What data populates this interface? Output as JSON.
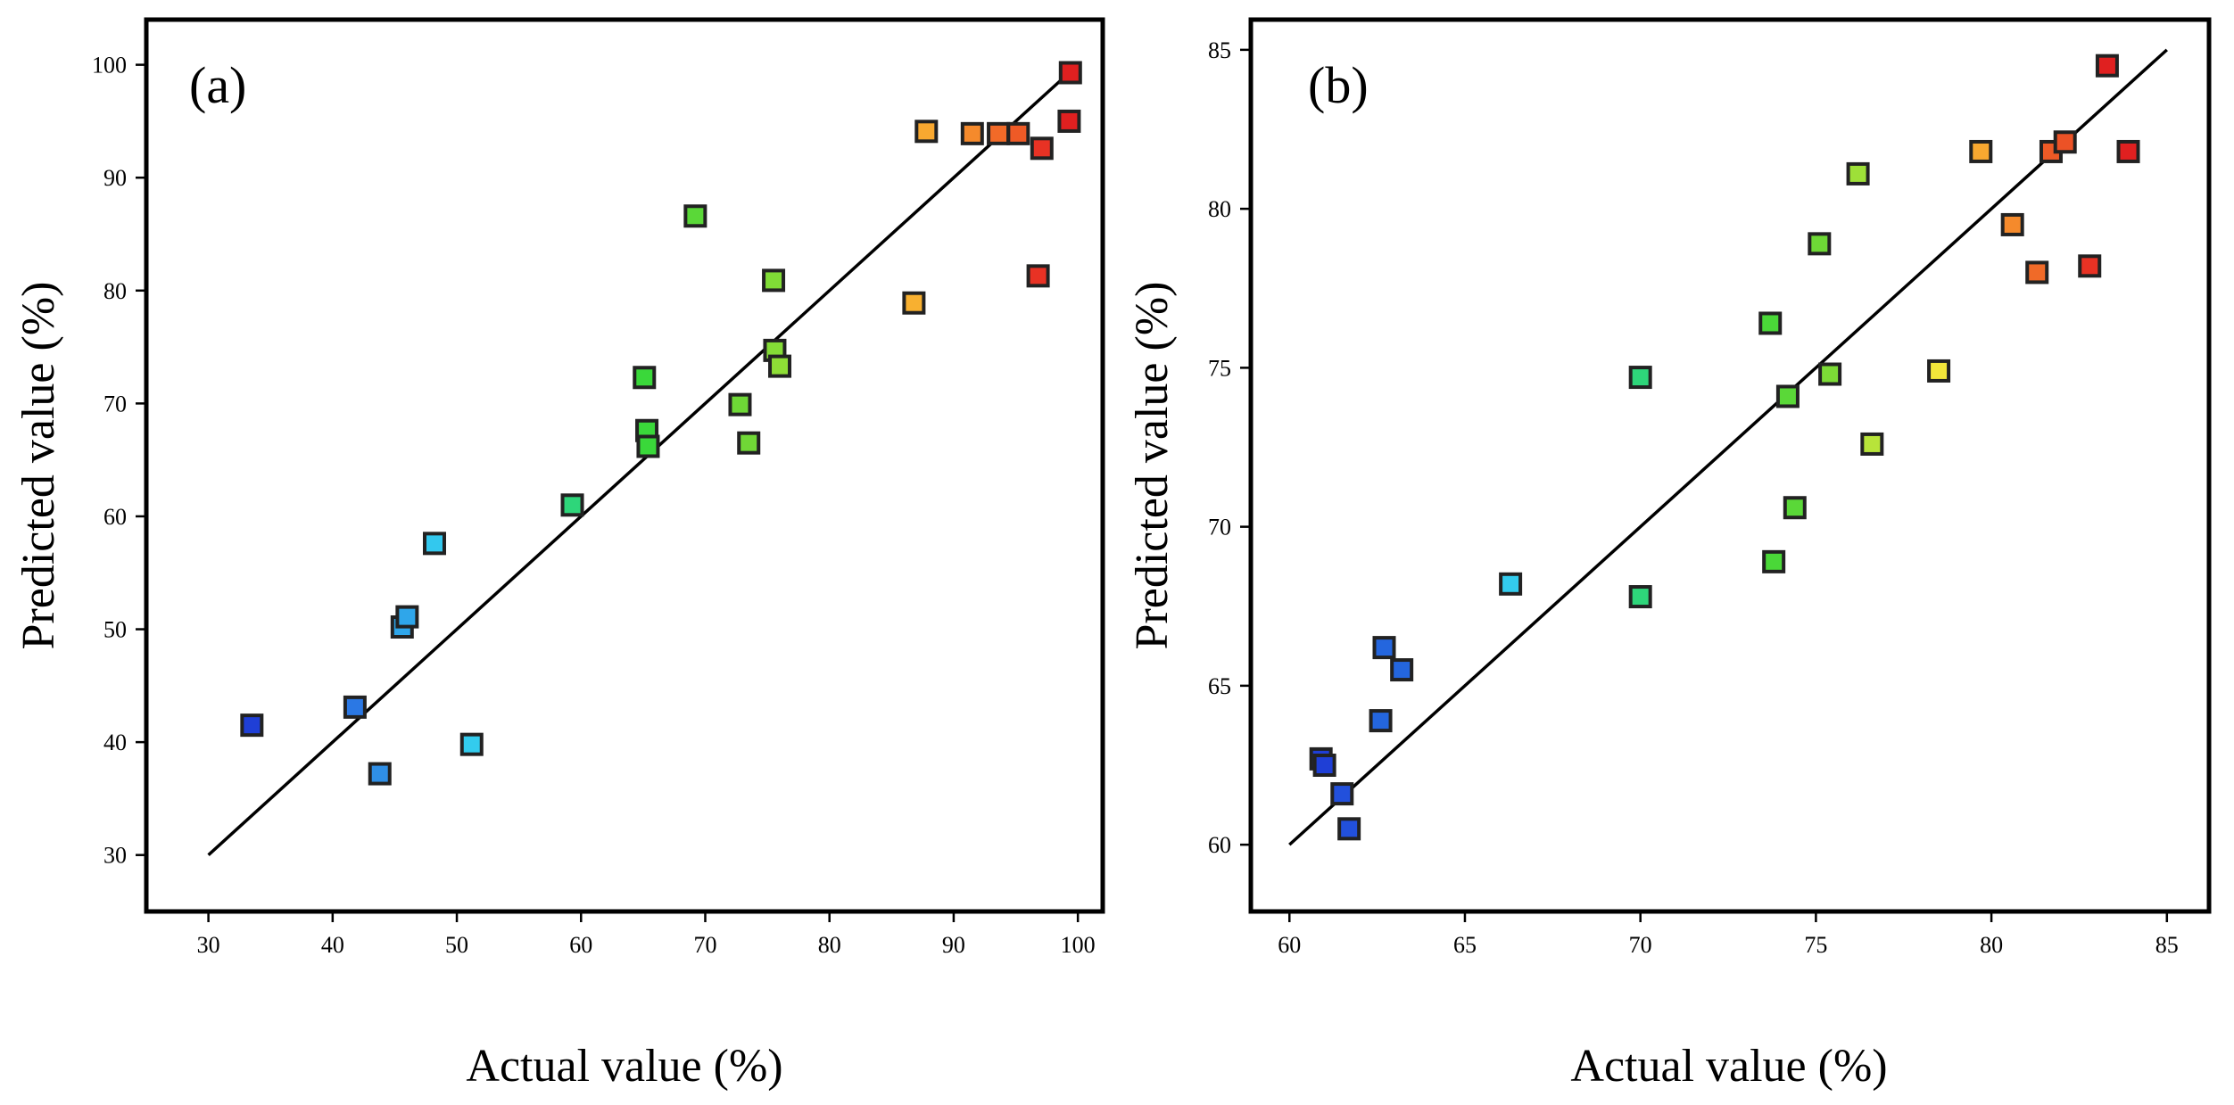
{
  "chart_data": [
    {
      "type": "scatter",
      "panel_label": "(a)",
      "xlabel": "Actual value (%)",
      "ylabel": "Predicted value (%)",
      "xlim": [
        25,
        102
      ],
      "ylim": [
        25,
        104
      ],
      "xticks": [
        30,
        40,
        50,
        60,
        70,
        80,
        90,
        100
      ],
      "yticks": [
        30,
        40,
        50,
        60,
        70,
        80,
        90,
        100
      ],
      "fit_line": [
        [
          30,
          30
        ],
        [
          100,
          100
        ]
      ],
      "points": [
        {
          "x": 33.5,
          "y": 41.5,
          "color": "#1f3fd6"
        },
        {
          "x": 41.8,
          "y": 43.1,
          "color": "#2b78e4"
        },
        {
          "x": 43.8,
          "y": 37.2,
          "color": "#2f8fe6"
        },
        {
          "x": 45.6,
          "y": 50.2,
          "color": "#2fa6ea"
        },
        {
          "x": 46.0,
          "y": 51.1,
          "color": "#2fa6ea"
        },
        {
          "x": 48.2,
          "y": 57.6,
          "color": "#33c8ee"
        },
        {
          "x": 51.2,
          "y": 39.8,
          "color": "#33ccee"
        },
        {
          "x": 59.3,
          "y": 61.0,
          "color": "#2ed67a"
        },
        {
          "x": 65.1,
          "y": 72.3,
          "color": "#3ad83a"
        },
        {
          "x": 65.3,
          "y": 67.6,
          "color": "#3ad83a"
        },
        {
          "x": 65.4,
          "y": 66.2,
          "color": "#3ad83a"
        },
        {
          "x": 69.2,
          "y": 86.6,
          "color": "#5ad838"
        },
        {
          "x": 72.8,
          "y": 69.9,
          "color": "#6ed836"
        },
        {
          "x": 73.5,
          "y": 66.5,
          "color": "#70d836"
        },
        {
          "x": 75.5,
          "y": 80.9,
          "color": "#80dc36"
        },
        {
          "x": 75.6,
          "y": 74.7,
          "color": "#84dc36"
        },
        {
          "x": 76.0,
          "y": 73.3,
          "color": "#8ede36"
        },
        {
          "x": 86.8,
          "y": 78.9,
          "color": "#f8b030"
        },
        {
          "x": 87.8,
          "y": 94.1,
          "color": "#f8a830"
        },
        {
          "x": 91.5,
          "y": 93.9,
          "color": "#f58a2c"
        },
        {
          "x": 93.6,
          "y": 93.9,
          "color": "#f26a28"
        },
        {
          "x": 95.2,
          "y": 93.9,
          "color": "#ee5a26"
        },
        {
          "x": 96.8,
          "y": 81.3,
          "color": "#e83224"
        },
        {
          "x": 97.1,
          "y": 92.6,
          "color": "#e83224"
        },
        {
          "x": 99.3,
          "y": 95.0,
          "color": "#e02020"
        },
        {
          "x": 99.4,
          "y": 99.3,
          "color": "#e02020"
        }
      ]
    },
    {
      "type": "scatter",
      "panel_label": "(b)",
      "xlabel": "Actual value (%)",
      "ylabel": "Predicted value (%)",
      "xlim": [
        58.9,
        86.2
      ],
      "ylim": [
        57.9,
        85.95
      ],
      "xticks": [
        60,
        65,
        70,
        75,
        80,
        85
      ],
      "yticks": [
        60,
        65,
        70,
        75,
        80,
        85
      ],
      "fit_line": [
        [
          60,
          60
        ],
        [
          85,
          85
        ]
      ],
      "points": [
        {
          "x": 60.9,
          "y": 62.7,
          "color": "#1f3fd6"
        },
        {
          "x": 61.0,
          "y": 62.5,
          "color": "#1f3fd6"
        },
        {
          "x": 61.5,
          "y": 61.6,
          "color": "#2250dc"
        },
        {
          "x": 61.7,
          "y": 60.5,
          "color": "#2250dc"
        },
        {
          "x": 62.6,
          "y": 63.9,
          "color": "#2466de"
        },
        {
          "x": 62.7,
          "y": 66.2,
          "color": "#2466de"
        },
        {
          "x": 63.2,
          "y": 65.5,
          "color": "#2466de"
        },
        {
          "x": 66.3,
          "y": 68.2,
          "color": "#33ccee"
        },
        {
          "x": 70.0,
          "y": 67.8,
          "color": "#2ed67a"
        },
        {
          "x": 70.0,
          "y": 74.7,
          "color": "#2ed67a"
        },
        {
          "x": 73.7,
          "y": 76.4,
          "color": "#4ad838"
        },
        {
          "x": 73.8,
          "y": 68.9,
          "color": "#4ad838"
        },
        {
          "x": 74.2,
          "y": 74.1,
          "color": "#5ad838"
        },
        {
          "x": 74.4,
          "y": 70.6,
          "color": "#5ad838"
        },
        {
          "x": 75.1,
          "y": 78.9,
          "color": "#6ed836"
        },
        {
          "x": 75.4,
          "y": 74.8,
          "color": "#7cdc36"
        },
        {
          "x": 76.2,
          "y": 81.1,
          "color": "#9ee038"
        },
        {
          "x": 76.6,
          "y": 72.6,
          "color": "#b8e43a"
        },
        {
          "x": 78.5,
          "y": 74.9,
          "color": "#f2e63a"
        },
        {
          "x": 79.7,
          "y": 81.8,
          "color": "#f8a830"
        },
        {
          "x": 80.6,
          "y": 79.5,
          "color": "#f58a2c"
        },
        {
          "x": 81.3,
          "y": 78.0,
          "color": "#f06a28"
        },
        {
          "x": 81.7,
          "y": 81.8,
          "color": "#ee5a26"
        },
        {
          "x": 82.1,
          "y": 82.1,
          "color": "#ec5226"
        },
        {
          "x": 82.8,
          "y": 78.2,
          "color": "#e83224"
        },
        {
          "x": 83.3,
          "y": 84.5,
          "color": "#e02020"
        },
        {
          "x": 83.9,
          "y": 81.8,
          "color": "#e02020"
        }
      ]
    }
  ]
}
